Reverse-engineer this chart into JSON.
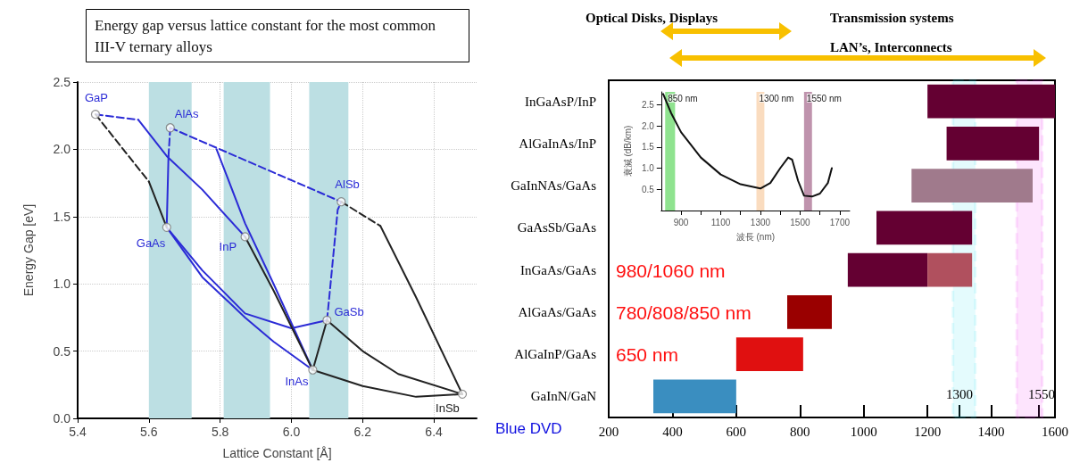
{
  "chart_data": [
    {
      "type": "line",
      "title": "Energy gap versus lattice constant for the most common III-V ternary alloys",
      "xlabel": "Lattice Constant [Å]",
      "ylabel": "Energy Gap [eV]",
      "xlim": [
        5.4,
        6.52
      ],
      "ylim": [
        0,
        2.5
      ],
      "xticks": [
        5.4,
        5.6,
        5.8,
        {
          "value": 6,
          "label": "6.0"
        },
        6.2,
        6.4
      ],
      "yticks": [
        {
          "value": 0,
          "label": "0.0"
        },
        0.5,
        {
          "value": 1,
          "label": "1.0"
        },
        1.5,
        {
          "value": 2,
          "label": "2.0"
        },
        2.5
      ],
      "grid": true,
      "bands": [
        {
          "axis": "x",
          "from": 5.6,
          "to": 5.72,
          "color": "#bcdfe3"
        },
        {
          "axis": "x",
          "from": 5.81,
          "to": 5.94,
          "color": "#bcdfe3"
        },
        {
          "axis": "x",
          "from": 6.05,
          "to": 6.16,
          "color": "#bcdfe3"
        }
      ],
      "series": [
        {
          "color": "#2b2bd6",
          "line_style": "dashed",
          "x": [
            5.45,
            5.57
          ],
          "values": [
            2.26,
            2.22
          ]
        },
        {
          "color": "#2b2bd6",
          "line_style": "solid",
          "x": [
            5.57,
            5.65,
            5.75,
            5.87
          ],
          "values": [
            2.22,
            1.95,
            1.7,
            1.35
          ]
        },
        {
          "color": "#2b2bd6",
          "line_style": "dashed",
          "x": [
            5.66,
            5.655
          ],
          "values": [
            2.16,
            1.95
          ]
        },
        {
          "color": "#2b2bd6",
          "line_style": "solid",
          "x": [
            5.655,
            5.65
          ],
          "values": [
            1.95,
            1.42
          ]
        },
        {
          "color": "#2b2bd6",
          "line_style": "dashed",
          "x": [
            5.66,
            6.14
          ],
          "values": [
            2.16,
            1.61
          ]
        },
        {
          "color": "#2b2bd6",
          "line_style": "solid",
          "x": [
            5.79,
            5.87,
            5.95,
            6.06
          ],
          "values": [
            2.0,
            1.45,
            1.0,
            0.36
          ]
        },
        {
          "color": "#2b2bd6",
          "line_style": "solid",
          "x": [
            5.65,
            5.75,
            5.87,
            5.95,
            6.06
          ],
          "values": [
            1.42,
            1.05,
            0.75,
            0.57,
            0.36
          ]
        },
        {
          "color": "#2b2bd6",
          "line_style": "solid",
          "x": [
            5.65,
            5.75,
            5.87,
            6.0,
            6.1
          ],
          "values": [
            1.42,
            1.1,
            0.78,
            0.67,
            0.73
          ]
        },
        {
          "color": "#2b2bd6",
          "line_style": "dashed",
          "x": [
            6.1,
            6.11,
            6.13,
            6.14
          ],
          "values": [
            0.73,
            1.0,
            1.55,
            1.61
          ]
        },
        {
          "color": "#222222",
          "line_style": "dashed",
          "x": [
            5.45,
            5.6
          ],
          "values": [
            2.26,
            1.76
          ]
        },
        {
          "color": "#222222",
          "line_style": "solid",
          "x": [
            5.6,
            5.65
          ],
          "values": [
            1.76,
            1.42
          ]
        },
        {
          "color": "#222222",
          "line_style": "solid",
          "x": [
            5.87,
            5.95,
            6.06
          ],
          "values": [
            1.35,
            0.95,
            0.36
          ]
        },
        {
          "color": "#222222",
          "line_style": "solid",
          "x": [
            6.06,
            6.1
          ],
          "values": [
            0.36,
            0.73
          ]
        },
        {
          "color": "#222222",
          "line_style": "solid",
          "x": [
            6.1,
            6.2,
            6.3,
            6.48
          ],
          "values": [
            0.73,
            0.5,
            0.33,
            0.18
          ]
        },
        {
          "color": "#222222",
          "line_style": "solid",
          "x": [
            6.06,
            6.2,
            6.35,
            6.48
          ],
          "values": [
            0.36,
            0.24,
            0.16,
            0.18
          ]
        },
        {
          "color": "#222222",
          "line_style": "dashed",
          "x": [
            6.14,
            6.25
          ],
          "values": [
            1.61,
            1.43
          ]
        },
        {
          "color": "#222222",
          "line_style": "solid",
          "x": [
            6.25,
            6.35,
            6.48
          ],
          "values": [
            1.43,
            0.9,
            0.18
          ]
        },
        {
          "type": "scatter",
          "marker": "circle",
          "color": "#ffffff",
          "x": [
            5.45,
            5.66,
            6.14,
            5.65,
            5.87,
            6.1,
            6.06,
            6.48
          ],
          "values": [
            2.26,
            2.16,
            1.61,
            1.42,
            1.35,
            0.73,
            0.36,
            0.18
          ]
        }
      ],
      "annotations": [
        {
          "text": "GaP",
          "x": 5.45,
          "y": 2.26
        },
        {
          "text": "AlAs",
          "x": 5.66,
          "y": 2.16
        },
        {
          "text": "AlSb",
          "x": 6.14,
          "y": 1.61
        },
        {
          "text": "GaAs",
          "x": 5.65,
          "y": 1.42
        },
        {
          "text": "InP",
          "x": 5.87,
          "y": 1.35
        },
        {
          "text": "GaSb",
          "x": 6.1,
          "y": 0.73
        },
        {
          "text": "InAs",
          "x": 6.06,
          "y": 0.36
        },
        {
          "text": "InSb",
          "x": 6.48,
          "y": 0.18
        }
      ]
    },
    {
      "type": "bar",
      "orientation": "horizontal",
      "categories": [
        "InGaAsP/InP",
        "AlGaInAs/InP",
        "GaInNAs/GaAs",
        "GaAsSb/GaAs",
        "InGaAs/GaAs",
        "AlGaAs/GaAs",
        "AlGaInP/GaAs",
        "GaInN/GaN"
      ],
      "series": [
        {
          "colors": [
            "#640032",
            "#640032",
            "#a07a8c",
            "#640032",
            "#640032",
            "#9a0000",
            "#e01010",
            "#3a8ec0"
          ],
          "base": [
            1200,
            1260,
            1150,
            1040,
            950,
            760,
            600,
            340
          ],
          "values": [
            400,
            290,
            380,
            300,
            250,
            140,
            210,
            260
          ]
        },
        {
          "color": "#b0505e",
          "base": [
            null,
            null,
            null,
            null,
            1200,
            null,
            null,
            null
          ],
          "values": [
            null,
            null,
            null,
            null,
            140,
            null,
            null,
            null
          ]
        }
      ],
      "xlim": [
        200,
        1600
      ],
      "xticks": [
        200,
        400,
        600,
        800,
        1000,
        1200,
        1400,
        1600,
        {
          "value": 1300,
          "label": null
        },
        {
          "value": 1550,
          "label": null
        }
      ],
      "bands": [
        {
          "axis": "x",
          "from": 1280,
          "to": 1350,
          "color": "#22e0f0"
        },
        {
          "axis": "x",
          "from": 1480,
          "to": 1560,
          "color": "#ee22ee"
        }
      ],
      "annotations": [
        "Optical Disks, Displays",
        "Transmission systems",
        "LAN’s, Interconnects",
        "Blue DVD",
        "980/1060 nm",
        "780/808/850 nm",
        "650 nm",
        "1300",
        "1550"
      ]
    },
    {
      "type": "line",
      "xlabel": "波長 (nm)",
      "ylabel": "衰減 (dB/km)",
      "xlim": [
        800,
        1750
      ],
      "ylim": [
        0,
        2.8
      ],
      "xticks": [
        900,
        {
          "value": 1000,
          "label": null
        },
        1100,
        {
          "value": 1200,
          "label": null
        },
        1300,
        {
          "value": 1400,
          "label": null
        },
        1500,
        {
          "value": 1600,
          "label": null
        },
        1700
      ],
      "yticks": [
        0.5,
        {
          "value": 1,
          "label": "1.0"
        },
        1.5,
        {
          "value": 2,
          "label": "2.0"
        },
        2.5
      ],
      "bands": [
        {
          "axis": "x",
          "from": 820,
          "to": 870,
          "color": "#33cc33",
          "label": "850 nm"
        },
        {
          "axis": "x",
          "from": 1280,
          "to": 1320,
          "color": "#f5c08a",
          "label": "1300 nm"
        },
        {
          "axis": "x",
          "from": 1520,
          "to": 1560,
          "color": "#8a3a6a",
          "label": "1550 nm"
        }
      ],
      "series": [
        {
          "color": "#111111",
          "x": [
            810,
            850,
            900,
            1000,
            1100,
            1200,
            1300,
            1350,
            1400,
            1440,
            1460,
            1490,
            1520,
            1560,
            1600,
            1640,
            1660
          ],
          "values": [
            2.75,
            2.3,
            1.85,
            1.25,
            0.85,
            0.62,
            0.52,
            0.65,
            1.0,
            1.25,
            1.2,
            0.7,
            0.35,
            0.33,
            0.4,
            0.65,
            1.0
          ]
        }
      ]
    }
  ]
}
